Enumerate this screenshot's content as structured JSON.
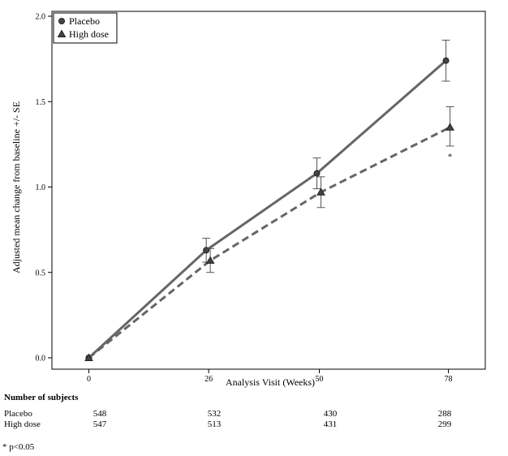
{
  "chart_data": {
    "type": "line",
    "title": "",
    "xlabel": "Analysis Visit (Weeks)",
    "ylabel": "Adjusted mean change from baseline +/- SE",
    "x": [
      0,
      26,
      50,
      78
    ],
    "x_tick_labels": [
      "0",
      "26",
      "50",
      "78"
    ],
    "y_ticks": [
      "0.0",
      "0.5",
      "1.0",
      "1.5",
      "2.0"
    ],
    "ylim": [
      0,
      2.0
    ],
    "legend_position": "top-left",
    "series": [
      {
        "name": "Placebo",
        "values": [
          0.0,
          0.63,
          1.08,
          1.74
        ],
        "se_lower": [
          0.0,
          0.56,
          0.99,
          1.62
        ],
        "se_upper": [
          0.0,
          0.7,
          1.17,
          1.86
        ],
        "marker": "circle",
        "line_style": "solid",
        "color": "#666666"
      },
      {
        "name": "High dose",
        "values": [
          0.0,
          0.57,
          0.97,
          1.35
        ],
        "se_lower": [
          0.0,
          0.5,
          0.88,
          1.24
        ],
        "se_upper": [
          0.0,
          0.64,
          1.06,
          1.47
        ],
        "marker": "triangle",
        "line_style": "dashed",
        "color": "#666666"
      }
    ],
    "annotations": [
      {
        "text": "*",
        "x": 78,
        "y": 1.19
      }
    ]
  },
  "subjects": {
    "title": "Number of subjects",
    "rows": [
      {
        "label": "Placebo",
        "counts": [
          "548",
          "532",
          "430",
          "288"
        ]
      },
      {
        "label": "High dose",
        "counts": [
          "547",
          "513",
          "431",
          "299"
        ]
      }
    ]
  },
  "footnote": "* p<0.05"
}
